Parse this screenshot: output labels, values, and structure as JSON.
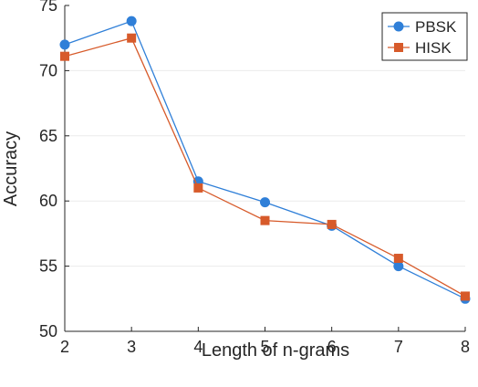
{
  "chart_data": {
    "type": "line",
    "x": [
      2,
      3,
      4,
      5,
      6,
      7,
      8
    ],
    "series": [
      {
        "name": "PBSK",
        "values": [
          72.0,
          73.8,
          61.5,
          59.9,
          58.1,
          55.0,
          52.5
        ],
        "color": "#2f7fd8",
        "marker": "circle"
      },
      {
        "name": "HISK",
        "values": [
          71.1,
          72.5,
          61.0,
          58.5,
          58.2,
          55.6,
          52.7
        ],
        "color": "#d75a2a",
        "marker": "square"
      }
    ],
    "xlabel": "Length of n-grams",
    "ylabel": "Accuracy",
    "xlim": [
      2,
      8
    ],
    "ylim": [
      50,
      75
    ],
    "xticks": [
      "2",
      "3",
      "4",
      "5",
      "6",
      "7",
      "8"
    ],
    "yticks": [
      "50",
      "55",
      "60",
      "65",
      "70",
      "75"
    ],
    "grid": "horizontal",
    "legend_position": "top-right"
  }
}
